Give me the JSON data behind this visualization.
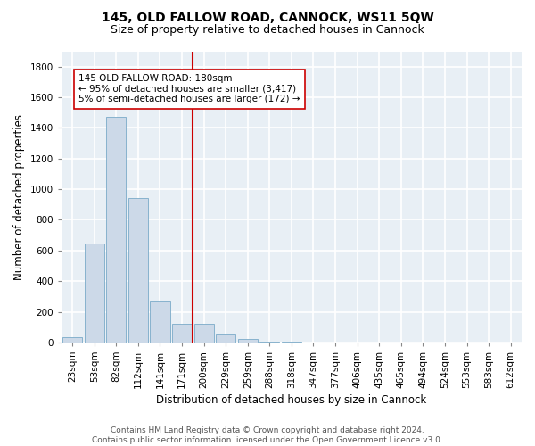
{
  "title": "145, OLD FALLOW ROAD, CANNOCK, WS11 5QW",
  "subtitle": "Size of property relative to detached houses in Cannock",
  "xlabel": "Distribution of detached houses by size in Cannock",
  "ylabel": "Number of detached properties",
  "bar_color": "#ccd9e8",
  "bar_edgecolor": "#7aaac8",
  "bin_labels": [
    "23sqm",
    "53sqm",
    "82sqm",
    "112sqm",
    "141sqm",
    "171sqm",
    "200sqm",
    "229sqm",
    "259sqm",
    "288sqm",
    "318sqm",
    "347sqm",
    "377sqm",
    "406sqm",
    "435sqm",
    "465sqm",
    "494sqm",
    "524sqm",
    "553sqm",
    "583sqm",
    "612sqm"
  ],
  "bar_values": [
    35,
    645,
    1470,
    945,
    270,
    120,
    120,
    60,
    20,
    5,
    5,
    0,
    0,
    0,
    0,
    0,
    0,
    0,
    0,
    0,
    0
  ],
  "vline_x": 5.5,
  "vline_color": "#cc0000",
  "annotation_box_text": "145 OLD FALLOW ROAD: 180sqm\n← 95% of detached houses are smaller (3,417)\n5% of semi-detached houses are larger (172) →",
  "ylim": [
    0,
    1900
  ],
  "yticks": [
    0,
    200,
    400,
    600,
    800,
    1000,
    1200,
    1400,
    1600,
    1800
  ],
  "footer_text": "Contains HM Land Registry data © Crown copyright and database right 2024.\nContains public sector information licensed under the Open Government Licence v3.0.",
  "background_color": "#e8eff5",
  "grid_color": "#ffffff",
  "title_fontsize": 10,
  "subtitle_fontsize": 9,
  "axis_label_fontsize": 8.5,
  "tick_fontsize": 7.5,
  "annotation_fontsize": 7.5,
  "footer_fontsize": 6.5
}
